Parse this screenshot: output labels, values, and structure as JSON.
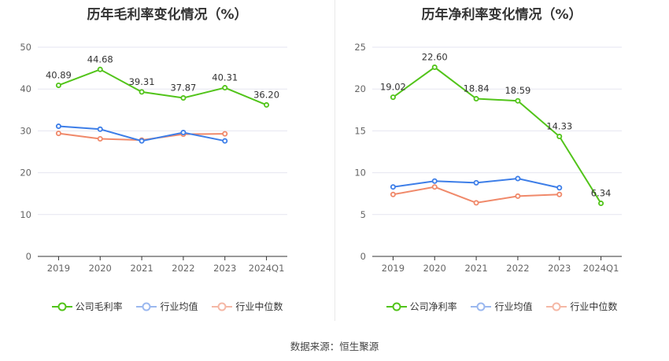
{
  "colors": {
    "company": "#52c41a",
    "avg": "#3d7ee8",
    "median": "#f0896a",
    "grid": "#e6e6f0",
    "axis": "#333333"
  },
  "source": "数据来源：恒生聚源",
  "chart_data": [
    {
      "type": "line",
      "title": "历年毛利率变化情况（%）",
      "categories": [
        "2019",
        "2020",
        "2021",
        "2022",
        "2023",
        "2024Q1"
      ],
      "ylim": [
        0,
        50
      ],
      "yticks": [
        0,
        10,
        20,
        30,
        40,
        50
      ],
      "grid": true,
      "legend_position": "bottom",
      "series": [
        {
          "name": "公司毛利率",
          "key": "company",
          "values": [
            40.89,
            44.68,
            39.31,
            37.87,
            40.31,
            36.2
          ],
          "labels": [
            "40.89",
            "44.68",
            "39.31",
            "37.87",
            "40.31",
            "36.20"
          ]
        },
        {
          "name": "行业均值",
          "key": "avg",
          "values": [
            31.1,
            30.4,
            27.6,
            29.6,
            27.6,
            null
          ]
        },
        {
          "name": "行业中位数",
          "key": "median",
          "values": [
            29.4,
            28.1,
            27.8,
            29.2,
            29.3,
            null
          ]
        }
      ]
    },
    {
      "type": "line",
      "title": "历年净利率变化情况（%）",
      "categories": [
        "2019",
        "2020",
        "2021",
        "2022",
        "2023",
        "2024Q1"
      ],
      "ylim": [
        0,
        25
      ],
      "yticks": [
        0,
        5,
        10,
        15,
        20,
        25
      ],
      "grid": true,
      "legend_position": "bottom",
      "series": [
        {
          "name": "公司净利率",
          "key": "company",
          "values": [
            19.02,
            22.6,
            18.84,
            18.59,
            14.33,
            6.34
          ],
          "labels": [
            "19.02",
            "22.60",
            "18.84",
            "18.59",
            "14.33",
            "6.34"
          ]
        },
        {
          "name": "行业均值",
          "key": "avg",
          "values": [
            8.3,
            9.0,
            8.8,
            9.3,
            8.2,
            null
          ]
        },
        {
          "name": "行业中位数",
          "key": "median",
          "values": [
            7.4,
            8.3,
            6.4,
            7.2,
            7.4,
            null
          ]
        }
      ]
    }
  ]
}
